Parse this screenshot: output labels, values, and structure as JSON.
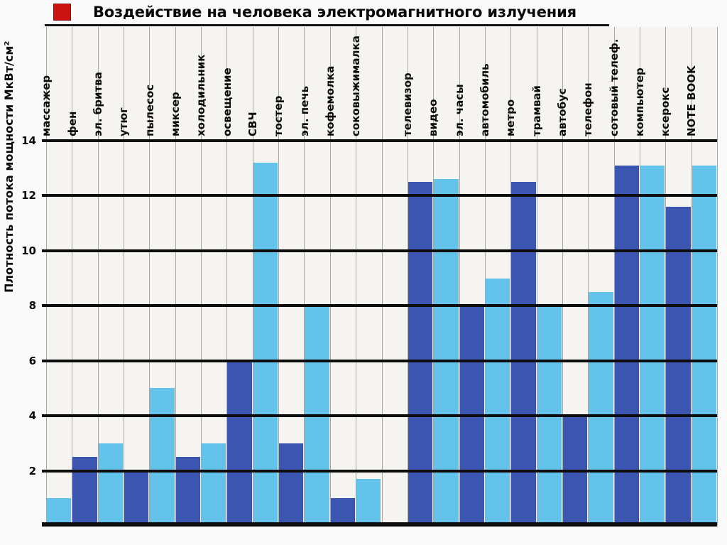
{
  "header": {
    "title": "Воздействие на человека электромагнитного излучения",
    "marker_color": "#cb1212"
  },
  "chart_data": {
    "type": "bar",
    "title": "Воздействие на человека электромагнитного излучения",
    "ylabel": "Плотность потока мощности МкВт/см²",
    "xlabel": "",
    "ylim": [
      0,
      14
    ],
    "yticks": [
      2,
      4,
      6,
      8,
      10,
      12,
      14
    ],
    "grid": "thick horizontal black lines at even values, thin gray vertical column separators",
    "legend": "none",
    "bar_colors": {
      "light": "#63c3ea",
      "dark": "#3c55b0"
    },
    "color_pattern": "bars alternate light/dark starting with light",
    "gap_between_groups": true,
    "groups": [
      {
        "categories": [
          "массажер",
          "фен",
          "эл. бритва",
          "утюг",
          "пылесос",
          "миксер",
          "холодильник",
          "освещение",
          "СВЧ",
          "тостер",
          "эл. печь",
          "кофемолка",
          "соковыжималка"
        ],
        "values": [
          1.0,
          2.5,
          3.0,
          2.0,
          5.0,
          2.5,
          3.0,
          6.0,
          13.2,
          3.0,
          8.0,
          1.0,
          1.7
        ]
      },
      {
        "categories": [
          "телевизор",
          "видео",
          "эл. часы",
          "автомобиль",
          "метро",
          "трамвай",
          "автобус",
          "телефон",
          "сотовый телеф.",
          "компьютер",
          "ксерокс",
          "NOTE BOOK"
        ],
        "values": [
          12.5,
          12.6,
          8.0,
          9.0,
          12.5,
          8.0,
          4.0,
          8.5,
          13.1,
          13.1,
          11.6,
          13.1
        ]
      }
    ]
  }
}
